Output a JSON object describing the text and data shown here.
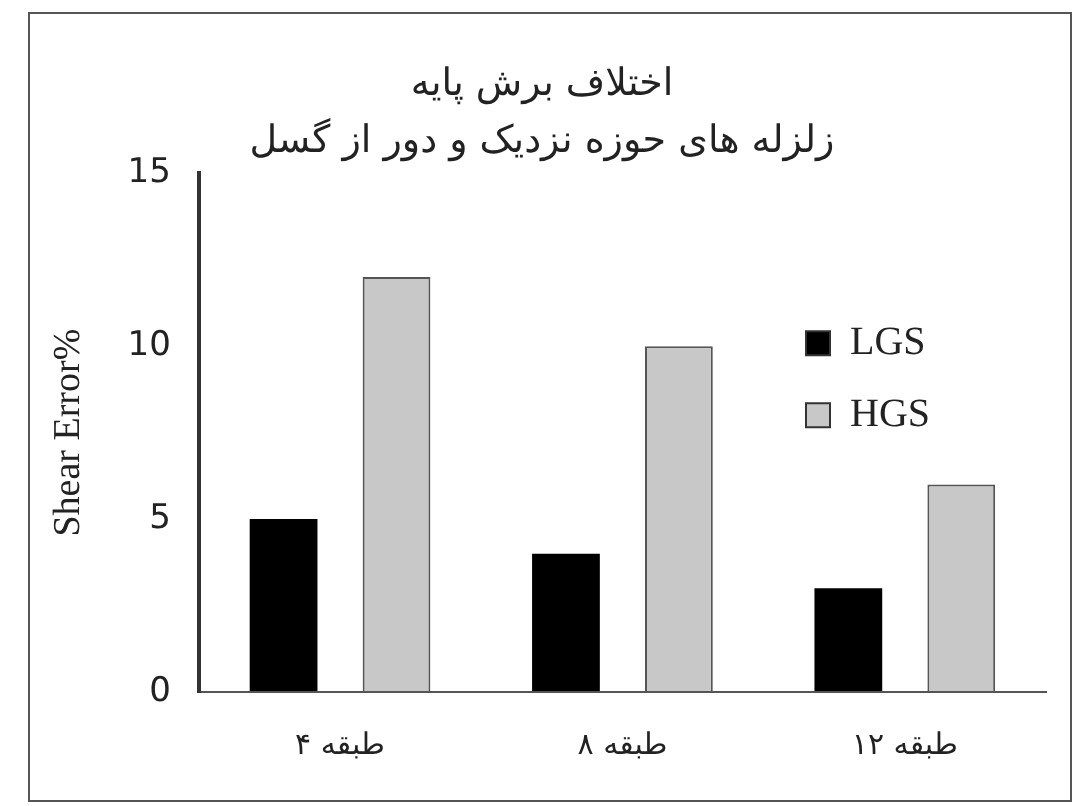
{
  "chart_data": {
    "type": "bar",
    "title": "اختلاف برش پایه",
    "subtitle": "زلزله های حوزه نزدیک و دور از گسل",
    "ylabel": "Shear Error%",
    "categories": [
      "۴ طبقه",
      "۸ طبقه",
      "۱۲ طبقه"
    ],
    "series": [
      {
        "name": "LGS",
        "color": "#000000",
        "values": [
          5,
          4,
          3
        ]
      },
      {
        "name": "HGS",
        "color": "#c8c8c8",
        "values": [
          12,
          10,
          6
        ]
      }
    ],
    "ylim": [
      0,
      15
    ],
    "yticks": [
      0,
      5,
      10,
      15
    ],
    "grid": false,
    "legend": "top right"
  }
}
